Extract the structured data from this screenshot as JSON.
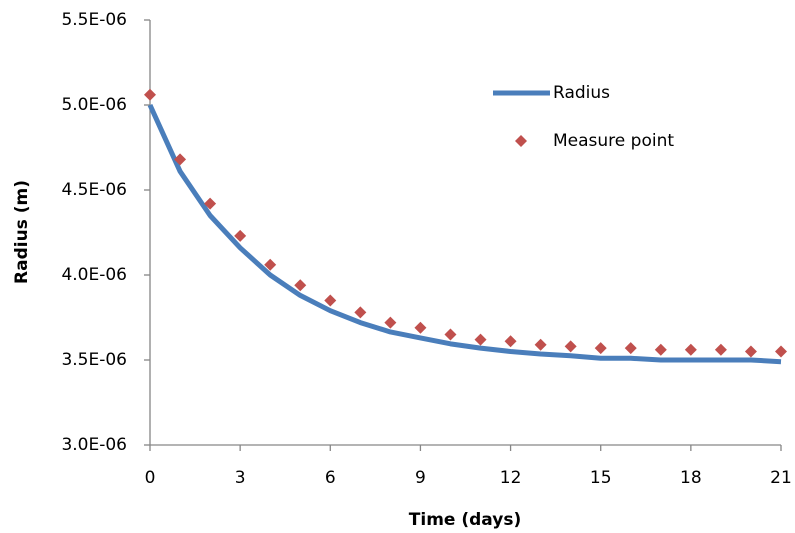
{
  "chart_data": {
    "type": "line",
    "x_label": "Time (days)",
    "y_label": "Radius (m)",
    "x": [
      0,
      1,
      2,
      3,
      4,
      5,
      6,
      7,
      8,
      9,
      10,
      11,
      12,
      13,
      14,
      15,
      16,
      17,
      18,
      19,
      20,
      21
    ],
    "series": [
      {
        "name": "Radius",
        "kind": "line",
        "color": "#4a7ebb",
        "values": [
          5e-06,
          4.61e-06,
          4.35e-06,
          4.16e-06,
          4e-06,
          3.88e-06,
          3.79e-06,
          3.72e-06,
          3.665e-06,
          3.63e-06,
          3.595e-06,
          3.57e-06,
          3.55e-06,
          3.535e-06,
          3.525e-06,
          3.51e-06,
          3.51e-06,
          3.5e-06,
          3.5e-06,
          3.5e-06,
          3.5e-06,
          3.49e-06
        ]
      },
      {
        "name": "Measure point",
        "kind": "scatter",
        "color": "#c0504d",
        "values": [
          5.06e-06,
          4.68e-06,
          4.42e-06,
          4.23e-06,
          4.06e-06,
          3.94e-06,
          3.85e-06,
          3.78e-06,
          3.72e-06,
          3.69e-06,
          3.65e-06,
          3.62e-06,
          3.61e-06,
          3.59e-06,
          3.58e-06,
          3.57e-06,
          3.57e-06,
          3.56e-06,
          3.56e-06,
          3.56e-06,
          3.55e-06,
          3.55e-06
        ]
      }
    ],
    "xlim": [
      0,
      21
    ],
    "xticks": [
      0,
      3,
      6,
      9,
      12,
      15,
      18,
      21
    ],
    "ylim": [
      3e-06,
      5.5e-06
    ],
    "yticks": [
      {
        "value": 3e-06,
        "label": "3.0E-06"
      },
      {
        "value": 3.5e-06,
        "label": "3.5E-06"
      },
      {
        "value": 4e-06,
        "label": "4.0E-06"
      },
      {
        "value": 4.5e-06,
        "label": "4.5E-06"
      },
      {
        "value": 5e-06,
        "label": "5.0E-06"
      },
      {
        "value": 5.5e-06,
        "label": "5.5E-06"
      }
    ],
    "grid": false,
    "legend": "upper right"
  }
}
